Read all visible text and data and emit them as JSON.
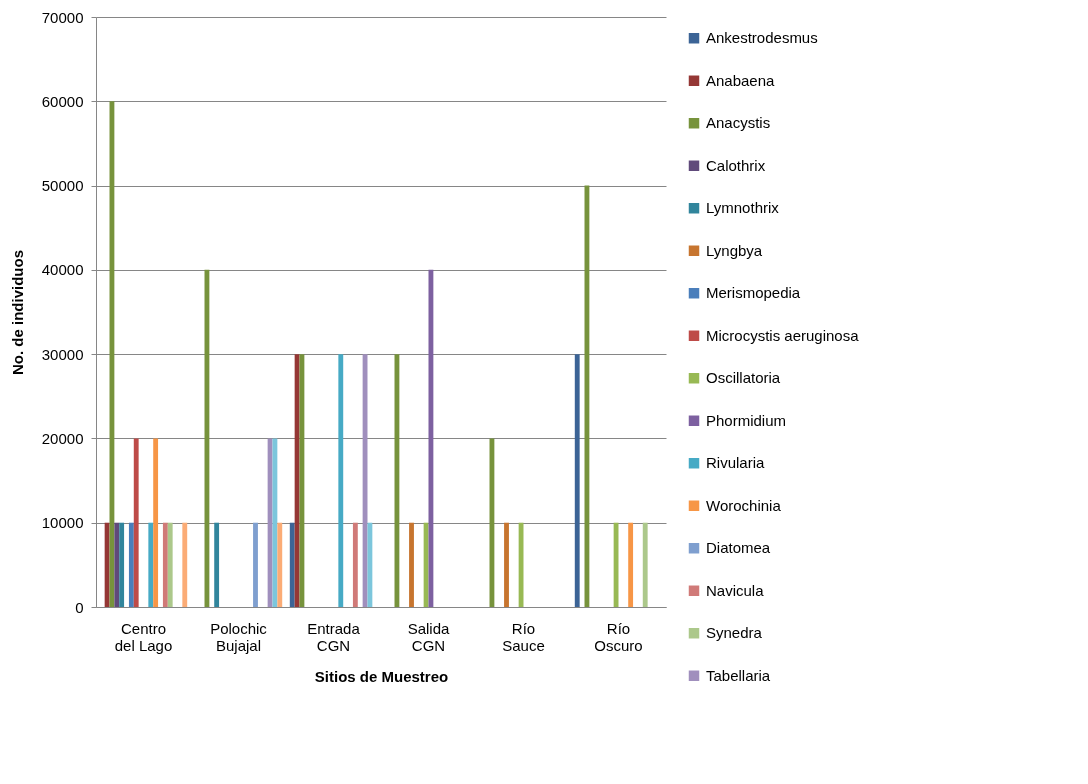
{
  "chart_data": {
    "type": "bar",
    "xlabel": "Sitios de Muestreo",
    "ylabel": "No. de individuos",
    "categories": [
      "Centro del Lago",
      "Polochic Bujajal",
      "Entrada CGN",
      "Salida CGN",
      "Río Sauce",
      "Río Oscuro"
    ],
    "series": [
      {
        "name": "Ankestrodesmus",
        "color": "#3c6496",
        "values": [
          null,
          null,
          10000,
          null,
          null,
          30000
        ]
      },
      {
        "name": "Anabaena",
        "color": "#953735",
        "values": [
          10000,
          null,
          30000,
          null,
          null,
          null
        ]
      },
      {
        "name": "Anacystis",
        "color": "#77933c",
        "values": [
          60000,
          40000,
          30000,
          30000,
          20000,
          50000
        ]
      },
      {
        "name": "Calothrix",
        "color": "#604a7b",
        "values": [
          10000,
          null,
          null,
          null,
          null,
          null
        ]
      },
      {
        "name": "Lymnothrix",
        "color": "#31859c",
        "values": [
          10000,
          10000,
          null,
          null,
          null,
          null
        ]
      },
      {
        "name": "Lyngbya",
        "color": "#c7752f",
        "values": [
          null,
          null,
          null,
          10000,
          10000,
          null
        ]
      },
      {
        "name": "Merismopedia",
        "color": "#4a7ebb",
        "values": [
          10000,
          null,
          null,
          null,
          null,
          null
        ]
      },
      {
        "name": "Microcystis aeruginosa",
        "color": "#be4b48",
        "values": [
          20000,
          null,
          null,
          null,
          null,
          null
        ]
      },
      {
        "name": "Oscillatoria",
        "color": "#98b954",
        "values": [
          null,
          null,
          null,
          10000,
          10000,
          10000
        ]
      },
      {
        "name": "Phormidium",
        "color": "#7d60a0",
        "values": [
          null,
          null,
          null,
          40000,
          null,
          null
        ]
      },
      {
        "name": "Rivularia",
        "color": "#46aac5",
        "values": [
          10000,
          null,
          30000,
          null,
          null,
          null
        ]
      },
      {
        "name": "Worochinia",
        "color": "#f79646",
        "values": [
          20000,
          null,
          null,
          null,
          null,
          10000
        ]
      },
      {
        "name": "Diatomea",
        "color": "#7f9fcf",
        "values": [
          null,
          10000,
          null,
          null,
          null,
          null
        ]
      },
      {
        "name": "Navicula",
        "color": "#d07a78",
        "values": [
          10000,
          null,
          10000,
          null,
          null,
          null
        ]
      },
      {
        "name": "Synedra",
        "color": "#acc88b",
        "values": [
          10000,
          null,
          null,
          null,
          null,
          10000
        ]
      },
      {
        "name": "Tabellaria",
        "color": "#a08fbd",
        "values": [
          null,
          20000,
          30000,
          null,
          null,
          null
        ]
      },
      {
        "color": "#7cc6dc",
        "values": [
          null,
          20000,
          10000,
          null,
          null,
          null
        ]
      },
      {
        "color": "#fbac76",
        "values": [
          10000,
          10000,
          null,
          null,
          null,
          null
        ]
      }
    ],
    "ylim": [
      0,
      70000
    ],
    "yticks": [
      0,
      10000,
      20000,
      30000,
      40000,
      50000,
      60000,
      70000
    ],
    "grid": "y",
    "legend": "right"
  }
}
